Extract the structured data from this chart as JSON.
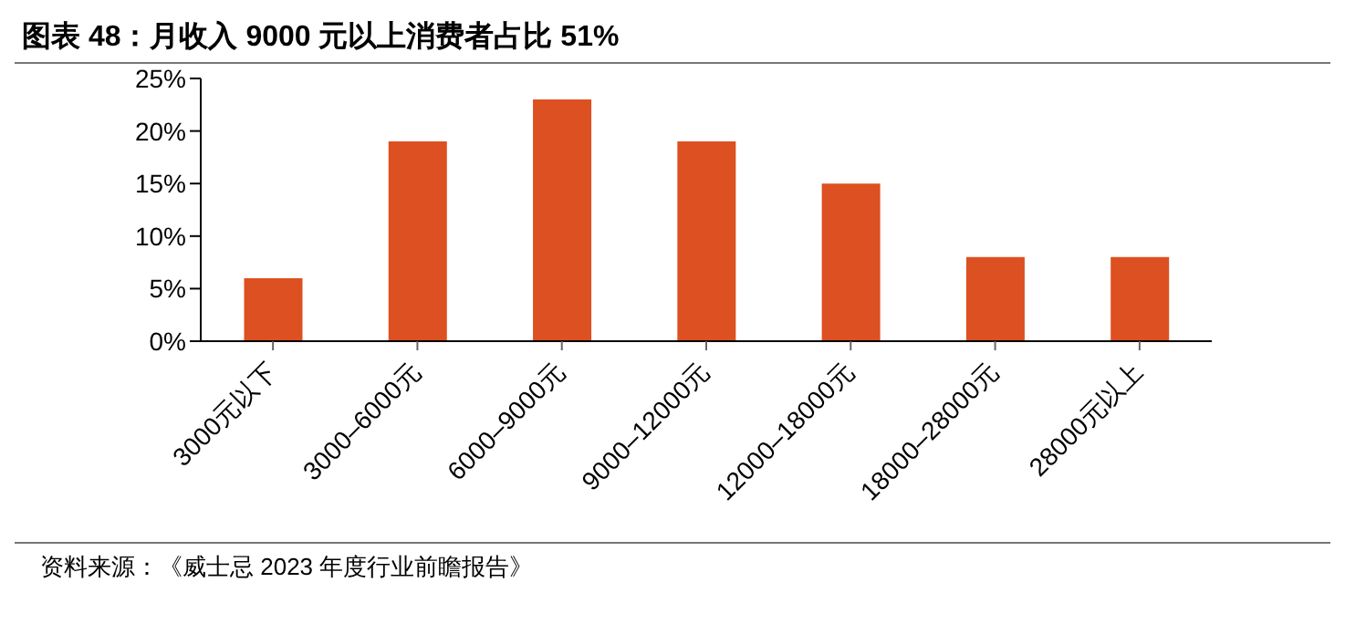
{
  "chart_data": {
    "type": "bar",
    "title": "图表 48：月收入 9000 元以上消费者占比 51%",
    "categories": [
      "3000元以下",
      "3000–6000元",
      "6000–9000元",
      "9000–12000元",
      "12000–18000元",
      "18000–28000元",
      "28000元以上"
    ],
    "values": [
      6,
      19,
      23,
      19,
      15,
      8,
      8
    ],
    "color": "#dd5021",
    "ylim": [
      0,
      25
    ],
    "yticks": [
      {
        "value": 0,
        "label": "0%"
      },
      {
        "value": 5,
        "label": "5%"
      },
      {
        "value": 10,
        "label": "10%"
      },
      {
        "value": 15,
        "label": "15%"
      },
      {
        "value": 20,
        "label": "20%"
      },
      {
        "value": 25,
        "label": "25%"
      }
    ],
    "grid": false,
    "legend": false,
    "annotations": [
      "资料来源：《威士忌 2023 年度行业前瞻报告》"
    ]
  }
}
